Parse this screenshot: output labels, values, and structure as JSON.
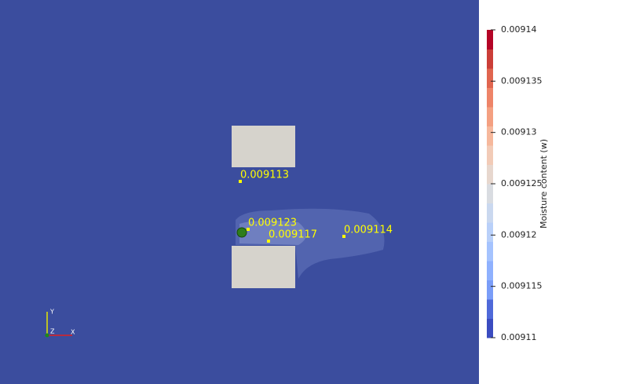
{
  "colorbar": {
    "title": "Moisture content (w)",
    "range": [
      0.00911,
      0.00914
    ],
    "ticks": [
      0.00914,
      0.009135,
      0.00913,
      0.009125,
      0.00912,
      0.009115,
      0.00911
    ],
    "colors": [
      "#3b4cc0",
      "#4f69d9",
      "#7a9df8",
      "#8fb1fe",
      "#a5c3fe",
      "#b9d0f9",
      "#cad8ef",
      "#d9dce1",
      "#e7d7ce",
      "#f2cbb7",
      "#f6b89c",
      "#f4a081",
      "#ee8468",
      "#e0654f",
      "#cb3e38",
      "#b40426"
    ]
  },
  "probes": [
    {
      "label": 0.009113
    },
    {
      "label": 0.009123
    },
    {
      "label": 0.009117
    },
    {
      "label": 0.009114
    }
  ],
  "axes": {
    "x": "X",
    "y": "Y",
    "z": "Z"
  }
}
